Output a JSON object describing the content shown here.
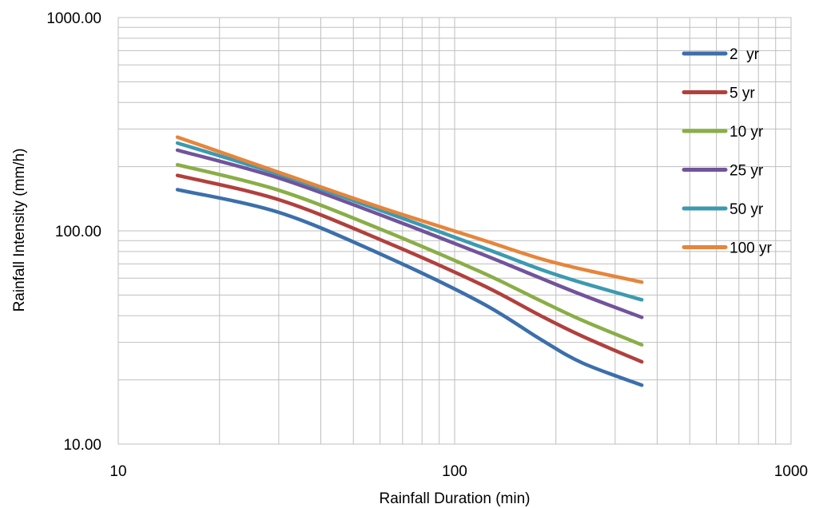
{
  "chart_data": {
    "type": "line",
    "title": "",
    "xlabel": "Rainfall Duration (min)",
    "ylabel": "Rainfall Intensity (mm/h)",
    "xscale": "log",
    "yscale": "log",
    "xlim": [
      10,
      1000
    ],
    "ylim": [
      10,
      1000
    ],
    "x_ticks": [
      "10",
      "100",
      "1000"
    ],
    "y_ticks": [
      "10.00",
      "100.00",
      "1000.00"
    ],
    "grid": true,
    "legend": "right",
    "x": [
      15,
      30,
      60,
      120,
      180,
      240,
      360
    ],
    "series": [
      {
        "name": "2  yr",
        "color": "#3c6fab",
        "values": [
          156,
          122,
          78,
          46,
          31,
          24,
          18.9
        ]
      },
      {
        "name": "5 yr",
        "color": "#b1403d",
        "values": [
          182,
          140,
          91,
          56,
          40,
          32,
          24.3
        ]
      },
      {
        "name": "10 yr",
        "color": "#8aae47",
        "values": [
          204,
          155,
          102,
          64,
          47,
          38,
          29.2
        ]
      },
      {
        "name": "25 yr",
        "color": "#71549a",
        "values": [
          239,
          177,
          119,
          78,
          60,
          50,
          39.3
        ]
      },
      {
        "name": "50 yr",
        "color": "#3b9ab1",
        "values": [
          258,
          184,
          125,
          84,
          66,
          57,
          47.5
        ]
      },
      {
        "name": "100 yr",
        "color": "#e6853b",
        "values": [
          275,
          188,
          129,
          91,
          74,
          66,
          57.5
        ]
      }
    ]
  }
}
